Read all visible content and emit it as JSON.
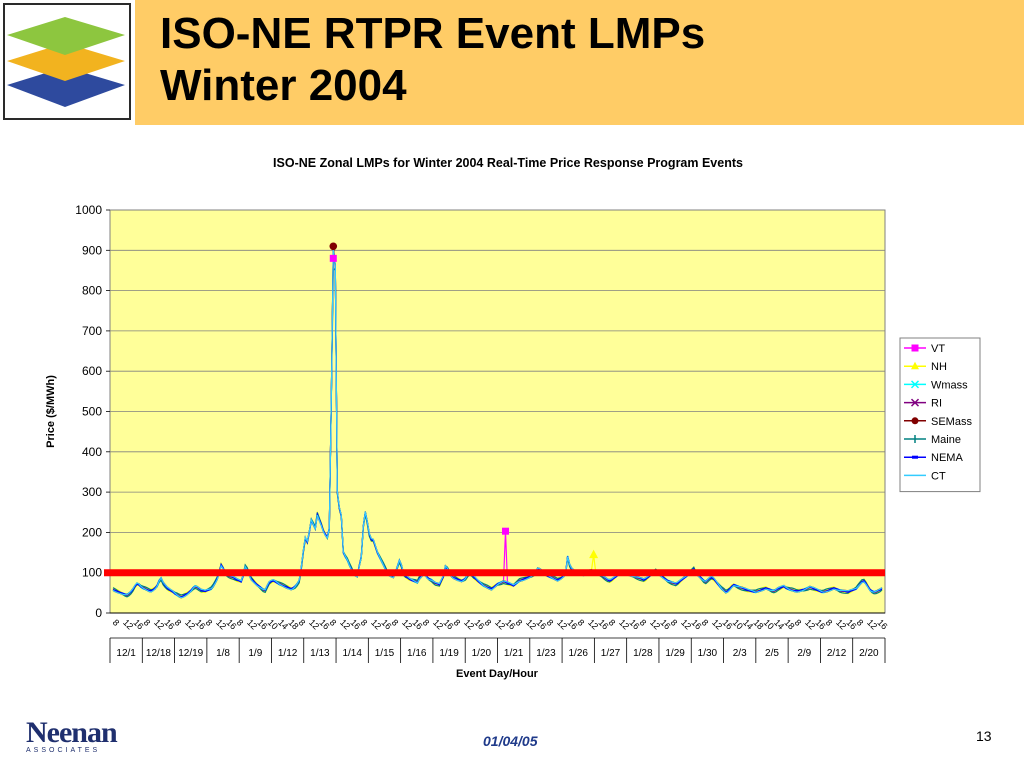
{
  "slide": {
    "title_line1": "ISO-NE RTPR Event LMPs",
    "title_line2": "Winter 2004",
    "footer_brand": "Neenan",
    "footer_brand_sub": "ASSOCIATES",
    "footer_date": "01/04/05",
    "page_number": "13",
    "colors": {
      "header_band": "#ffcc66",
      "logo_green": "#8dc63f",
      "logo_gold": "#f2b31f",
      "logo_blue": "#2e4a9e",
      "date_text": "#1f3a8a"
    }
  },
  "chart_data": {
    "type": "line",
    "title": "ISO-NE Zonal LMPs for Winter 2004 Real-Time Price Response Program Events",
    "xlabel": "Event Day/Hour",
    "ylabel": "Price ($/MWh)",
    "ylim": [
      0,
      1000
    ],
    "yticks": [
      0,
      100,
      200,
      300,
      400,
      500,
      600,
      700,
      800,
      900,
      1000
    ],
    "grid": "horizontal",
    "legend_position": "right",
    "plot_background": "#ffff99",
    "threshold_line": {
      "value": 100,
      "color": "#ff0000"
    },
    "hour_ticks": [
      "8",
      "12",
      "16",
      "8",
      "12",
      "16",
      "8",
      "12",
      "16",
      "8",
      "12",
      "16",
      "8",
      "12",
      "16",
      "10",
      "14",
      "18",
      "8",
      "12",
      "16",
      "8",
      "12",
      "16",
      "8",
      "12",
      "16",
      "8",
      "12",
      "16",
      "8",
      "12",
      "16",
      "8",
      "12",
      "16",
      "8",
      "12",
      "16",
      "8",
      "12",
      "16",
      "8",
      "12",
      "16",
      "8",
      "12",
      "16",
      "8",
      "12",
      "16",
      "8",
      "12",
      "16",
      "8",
      "12",
      "16",
      "8",
      "12",
      "16",
      "10",
      "14",
      "18",
      "10",
      "14",
      "18",
      "8",
      "12",
      "16",
      "8",
      "12",
      "16",
      "8",
      "12",
      "16"
    ],
    "event_days": [
      "12/1",
      "12/18",
      "12/19",
      "1/8",
      "1/9",
      "1/12",
      "1/13",
      "1/14",
      "1/15",
      "1/16",
      "1/19",
      "1/20",
      "1/21",
      "1/23",
      "1/26",
      "1/27",
      "1/28",
      "1/29",
      "1/30",
      "2/3",
      "2/5",
      "2/9",
      "2/12",
      "2/20"
    ],
    "series": [
      {
        "name": "VT",
        "color": "#ff00ff",
        "marker": "square"
      },
      {
        "name": "NH",
        "color": "#ffff00",
        "marker": "triangle"
      },
      {
        "name": "Wmass",
        "color": "#00ffff",
        "marker": "x"
      },
      {
        "name": "RI",
        "color": "#800080",
        "marker": "x"
      },
      {
        "name": "SEMass",
        "color": "#800000",
        "marker": "circle"
      },
      {
        "name": "Maine",
        "color": "#008080",
        "marker": "plus"
      },
      {
        "name": "NEMA",
        "color": "#0000ff",
        "marker": "dash"
      },
      {
        "name": "CT",
        "color": "#33ccff",
        "marker": "none"
      }
    ],
    "base_profile": [
      58,
      56,
      54,
      52,
      50,
      48,
      46,
      45,
      48,
      52,
      58,
      66,
      72,
      70,
      65,
      62,
      60,
      58,
      56,
      55,
      58,
      62,
      68,
      80,
      86,
      75,
      68,
      62,
      58,
      55,
      52,
      48,
      45,
      42,
      40,
      42,
      45,
      48,
      52,
      56,
      62,
      66,
      64,
      60,
      56,
      55,
      54,
      56,
      58,
      60,
      66,
      75,
      85,
      100,
      120,
      112,
      100,
      95,
      92,
      90,
      88,
      85,
      82,
      80,
      78,
      92,
      115,
      108,
      95,
      85,
      80,
      75,
      70,
      66,
      62,
      58,
      56,
      66,
      75,
      78,
      80,
      78,
      75,
      72,
      70,
      68,
      66,
      64,
      62,
      60,
      62,
      66,
      72,
      80,
      110,
      150,
      185,
      175,
      200,
      230,
      220,
      210,
      245,
      232,
      220,
      205,
      195,
      188,
      210,
      530,
      900,
      860,
      300,
      260,
      240,
      150,
      140,
      132,
      120,
      110,
      100,
      95,
      92,
      118,
      140,
      215,
      250,
      225,
      195,
      182,
      180,
      165,
      150,
      140,
      130,
      120,
      110,
      100,
      95,
      92,
      90,
      100,
      115,
      130,
      118,
      98,
      92,
      88,
      84,
      82,
      80,
      78,
      76,
      86,
      92,
      98,
      95,
      88,
      84,
      82,
      78,
      74,
      72,
      70,
      80,
      90,
      115,
      110,
      100,
      92,
      88,
      86,
      84,
      82,
      80,
      82,
      86,
      94,
      100,
      96,
      90,
      85,
      80,
      76,
      72,
      68,
      66,
      64,
      62,
      60,
      64,
      68,
      72,
      74,
      76,
      78,
      76,
      74,
      72,
      70,
      68,
      72,
      76,
      80,
      82,
      84,
      86,
      88,
      90,
      92,
      96,
      100,
      110,
      108,
      104,
      100,
      95,
      92,
      90,
      88,
      86,
      84,
      82,
      85,
      88,
      92,
      98,
      140,
      120,
      110,
      105,
      100,
      98,
      96,
      95,
      94,
      96,
      100,
      102,
      104,
      102,
      100,
      98,
      96,
      94,
      90,
      86,
      82,
      80,
      82,
      86,
      90,
      94,
      96,
      98,
      100,
      99,
      97,
      95,
      93,
      92,
      90,
      88,
      86,
      84,
      82,
      84,
      88,
      92,
      96,
      100,
      104,
      100,
      96,
      92,
      88,
      84,
      80,
      78,
      76,
      74,
      72,
      74,
      78,
      82,
      86,
      90,
      94,
      98,
      104,
      110,
      100,
      95,
      90,
      85,
      80,
      78,
      82,
      86,
      88,
      84,
      78,
      72,
      66,
      60,
      56,
      52,
      55,
      60,
      66,
      70,
      68,
      66,
      64,
      62,
      60,
      58,
      56,
      55,
      54,
      53,
      52,
      54,
      56,
      58,
      60,
      62,
      60,
      58,
      56,
      55,
      57,
      60,
      62,
      64,
      66,
      62,
      60,
      58,
      57,
      56,
      55,
      55,
      56,
      57,
      58,
      60,
      62,
      64,
      62,
      60,
      58,
      56,
      54,
      52,
      52,
      54,
      56,
      58,
      60,
      62,
      60,
      58,
      56,
      55,
      54,
      53,
      52,
      54,
      56,
      58,
      60,
      66,
      72,
      78,
      80,
      74,
      66,
      58,
      54,
      52,
      53,
      55,
      57,
      60
    ],
    "spikes": {
      "VT": {
        "index": 196,
        "value": 203
      },
      "NH": {
        "index": 240,
        "value": 145
      },
      "VT_peak": 880,
      "SEMass_peak": 910,
      "Maine_peak": 850
    }
  }
}
